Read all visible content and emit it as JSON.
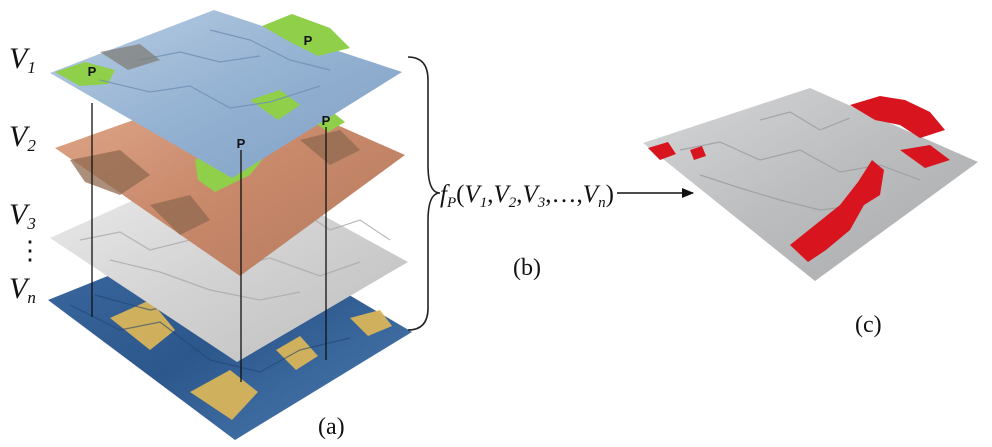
{
  "layers": {
    "labels": [
      {
        "letter": "V",
        "sub": "1"
      },
      {
        "letter": "V",
        "sub": "2"
      },
      {
        "letter": "V",
        "sub": "3"
      },
      {
        "letter": "V",
        "sub": "n"
      }
    ],
    "dots": "⋮",
    "point_marker": "P"
  },
  "formula": {
    "func": "f",
    "func_sub": "P",
    "open": "(",
    "args": [
      {
        "letter": "V",
        "sub": "1"
      },
      {
        "letter": "V",
        "sub": "2"
      },
      {
        "letter": "V",
        "sub": "3"
      },
      {
        "letter": "…",
        "sub": ""
      },
      {
        "letter": "V",
        "sub": "n"
      }
    ],
    "close": ")"
  },
  "panels": {
    "a": "(a)",
    "b": "(b)",
    "c": "(c)"
  },
  "colors": {
    "layer1": "#9cb8d6",
    "layer1_patch": "#8fcf4a",
    "layer2": "#d59a7c",
    "layer3": "#dcdcdc",
    "layern": "#2f5f96",
    "layern_patch": "#d8b45a",
    "result": "#bfc0c2",
    "result_patch": "#d8141e"
  }
}
